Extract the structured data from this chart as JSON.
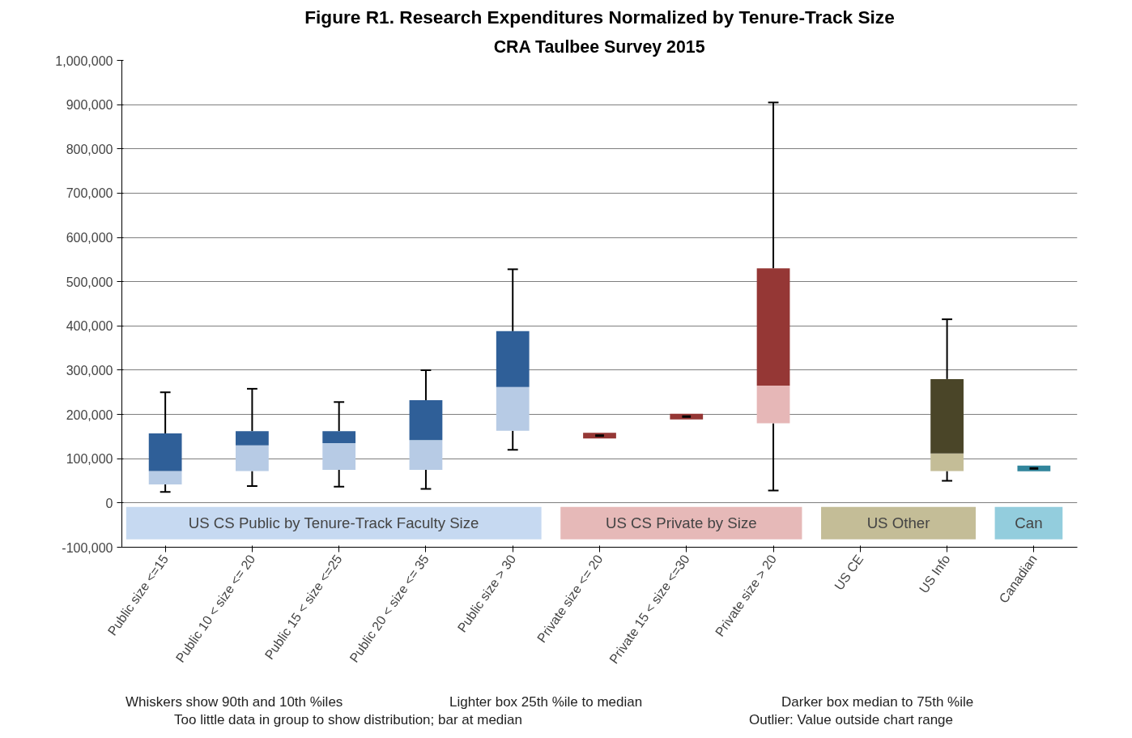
{
  "chart_data": {
    "type": "box",
    "title": "Figure R1. Research Expenditures Normalized by Tenure-Track Size",
    "subtitle": "CRA Taulbee Survey 2015",
    "categories": [
      "Public size <=15",
      "Public 10 < size <= 20",
      "Public 15 < size <=25",
      "Public 20 < size <= 35",
      "Public size > 30",
      "Private size <= 20",
      "Private 15 < size <=30",
      "Private size > 20",
      "US CE",
      "US Info",
      "Canadian"
    ],
    "boxes": [
      {
        "low": 25000,
        "q1": 42000,
        "median": 72000,
        "q3": 157000,
        "high": 250000
      },
      {
        "low": 38000,
        "q1": 72000,
        "median": 130000,
        "q3": 162000,
        "high": 258000
      },
      {
        "low": 37000,
        "q1": 75000,
        "median": 135000,
        "q3": 162000,
        "high": 228000
      },
      {
        "low": 32000,
        "q1": 75000,
        "median": 142000,
        "q3": 232000,
        "high": 300000
      },
      {
        "low": 120000,
        "q1": 163000,
        "median": 262000,
        "q3": 388000,
        "high": 528000
      },
      {
        "low": 152000,
        "q1": 152000,
        "median": 152000,
        "q3": 152000,
        "high": 152000
      },
      {
        "low": 195000,
        "q1": 195000,
        "median": 195000,
        "q3": 195000,
        "high": 195000
      },
      {
        "low": 28000,
        "q1": 180000,
        "median": 265000,
        "q3": 530000,
        "high": 905000
      },
      null,
      {
        "low": 50000,
        "q1": 72000,
        "median": 112000,
        "q3": 280000,
        "high": 415000
      },
      {
        "low": 78000,
        "q1": 78000,
        "median": 78000,
        "q3": 78000,
        "high": 78000
      }
    ],
    "colors": [
      [
        "#b7cbe5",
        "#2f5f98"
      ],
      [
        "#b7cbe5",
        "#2f5f98"
      ],
      [
        "#b7cbe5",
        "#2f5f98"
      ],
      [
        "#b7cbe5",
        "#2f5f98"
      ],
      [
        "#b7cbe5",
        "#2f5f98"
      ],
      [
        "#e6b7b7",
        "#953735"
      ],
      [
        "#e6b7b7",
        "#953735"
      ],
      [
        "#e6b7b7",
        "#953735"
      ],
      null,
      [
        "#c4bd97",
        "#4a4528"
      ],
      [
        "#93cddd",
        "#31859c"
      ]
    ],
    "ylim": [
      -100000,
      1000000
    ],
    "yticks": [
      {
        "value": -100000,
        "label": "-100,000"
      },
      0,
      {
        "value": 100000,
        "label": "100,000"
      },
      {
        "value": 200000,
        "label": "200,000"
      },
      {
        "value": 300000,
        "label": "300,000"
      },
      {
        "value": 400000,
        "label": "400,000"
      },
      {
        "value": 500000,
        "label": "500,000"
      },
      {
        "value": 600000,
        "label": "600,000"
      },
      {
        "value": 700000,
        "label": "700,000"
      },
      {
        "value": 800000,
        "label": "800,000"
      },
      {
        "value": 900000,
        "label": "900,000"
      },
      {
        "value": 1000000,
        "label": "1,000,000"
      }
    ],
    "bands": [
      {
        "axis": "x",
        "from": "Public size <=15",
        "to": "Public size > 30",
        "label": "US CS Public by Tenure-Track Faculty Size",
        "color": "#c6d9f1"
      },
      {
        "axis": "x",
        "from": "Private size <= 20",
        "to": "Private size > 20",
        "label": "US CS Private by Size",
        "color": "#e6b9b8"
      },
      {
        "axis": "x",
        "from": "US CE",
        "to": "US Info",
        "label": "US Other",
        "color": "#c4bd97"
      },
      {
        "axis": "x",
        "from": "Canadian",
        "to": "Canadian",
        "label": "Can",
        "color": "#93cddd"
      }
    ],
    "annotations": [
      "Whiskers show 90th and 10th %iles",
      "Lighter box  25th %ile to median",
      "Darker box  median to 75th %ile",
      "Too little data in group to show distribution; bar at median",
      "Outlier: Value outside chart range"
    ],
    "grid": "y"
  }
}
